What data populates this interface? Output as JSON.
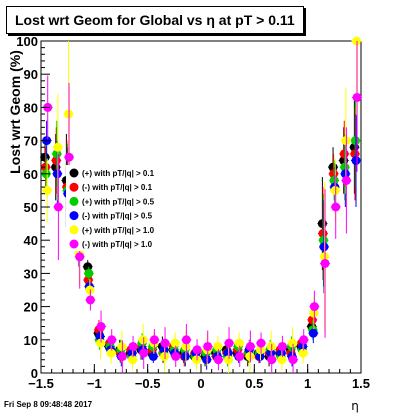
{
  "header": {
    "title": "Lost wrt Geom for Global vs  η at pT > 0.11"
  },
  "footer": {
    "timestamp": "Fri Sep  8 09:48:48 2017"
  },
  "chart_data": {
    "type": "scatter",
    "title": "Lost wrt Geom for Global vs  η at pT > 0.11",
    "xlabel": "η",
    "ylabel": "Lost wrt Geom (%)",
    "xlim": [
      -1.5,
      1.5
    ],
    "ylim": [
      0,
      100
    ],
    "x_ticks": [
      "−1.5",
      "−1",
      "−0.5",
      "0",
      "0.5",
      "1",
      "1.5"
    ],
    "y_ticks": [
      "0",
      "10",
      "20",
      "30",
      "40",
      "50",
      "60",
      "70",
      "80",
      "90",
      "100"
    ],
    "grid": false,
    "legend_position": "left",
    "series": [
      {
        "name": "(+) with pT/|q| > 0.1",
        "color": "#000000",
        "x": [
          -1.45,
          -1.35,
          -1.25,
          -1.15,
          -1.05,
          -0.95,
          -0.85,
          -0.75,
          -0.65,
          -0.55,
          -0.45,
          -0.35,
          -0.25,
          -0.15,
          -0.05,
          0.05,
          0.15,
          0.25,
          0.35,
          0.45,
          0.55,
          0.65,
          0.75,
          0.85,
          0.95,
          1.05,
          1.15,
          1.25,
          1.35,
          1.45
        ],
        "y": [
          65,
          62,
          58,
          45,
          32,
          12,
          8,
          7,
          6,
          7,
          6,
          8,
          7,
          6,
          5,
          5,
          6,
          7,
          6,
          5,
          6,
          5,
          6,
          7,
          8,
          14,
          45,
          62,
          64,
          68
        ]
      },
      {
        "name": "(-) with pT/|q| > 0.1",
        "color": "#ff0000",
        "x": [
          -1.45,
          -1.35,
          -1.25,
          -1.15,
          -1.05,
          -0.95,
          -0.85,
          -0.75,
          -0.65,
          -0.55,
          -0.45,
          -0.35,
          -0.25,
          -0.15,
          -0.05,
          0.05,
          0.15,
          0.25,
          0.35,
          0.45,
          0.55,
          0.65,
          0.75,
          0.85,
          0.95,
          1.05,
          1.15,
          1.25,
          1.35,
          1.45
        ],
        "y": [
          62,
          64,
          56,
          42,
          28,
          13,
          9,
          6,
          7,
          8,
          7,
          6,
          8,
          5,
          6,
          6,
          5,
          6,
          7,
          6,
          5,
          6,
          7,
          6,
          9,
          16,
          42,
          60,
          66,
          66
        ]
      },
      {
        "name": "(+) with pT/|q| > 0.5",
        "color": "#00cc00",
        "x": [
          -1.45,
          -1.35,
          -1.25,
          -1.15,
          -1.05,
          -0.95,
          -0.85,
          -0.75,
          -0.65,
          -0.55,
          -0.45,
          -0.35,
          -0.25,
          -0.15,
          -0.05,
          0.05,
          0.15,
          0.25,
          0.35,
          0.45,
          0.55,
          0.65,
          0.75,
          0.85,
          0.95,
          1.05,
          1.15,
          1.25,
          1.35,
          1.45
        ],
        "y": [
          60,
          66,
          55,
          40,
          30,
          10,
          8,
          7,
          5,
          9,
          8,
          6,
          7,
          7,
          5,
          6,
          7,
          5,
          8,
          6,
          6,
          7,
          5,
          8,
          7,
          13,
          40,
          58,
          62,
          70
        ]
      },
      {
        "name": "(-) with pT/|q| > 0.5",
        "color": "#0000ff",
        "x": [
          -1.45,
          -1.35,
          -1.25,
          -1.15,
          -1.05,
          -0.95,
          -0.85,
          -0.75,
          -0.65,
          -0.55,
          -0.45,
          -0.35,
          -0.25,
          -0.15,
          -0.05,
          0.05,
          0.15,
          0.25,
          0.35,
          0.45,
          0.55,
          0.65,
          0.75,
          0.85,
          0.95,
          1.05,
          1.15,
          1.25,
          1.35,
          1.45
        ],
        "y": [
          70,
          60,
          54,
          38,
          26,
          11,
          7,
          5,
          6,
          7,
          5,
          7,
          6,
          5,
          6,
          4,
          5,
          6,
          5,
          7,
          5,
          6,
          6,
          5,
          8,
          12,
          38,
          56,
          60,
          64
        ]
      },
      {
        "name": "(+) with pT/|q| > 1.0",
        "color": "#ffff00",
        "x": [
          -1.45,
          -1.35,
          -1.25,
          -1.15,
          -1.05,
          -0.95,
          -0.85,
          -0.75,
          -0.65,
          -0.55,
          -0.45,
          -0.35,
          -0.25,
          -0.15,
          -0.05,
          0.05,
          0.15,
          0.25,
          0.35,
          0.45,
          0.55,
          0.65,
          0.75,
          0.85,
          0.95,
          1.05,
          1.15,
          1.25,
          1.35,
          1.45
        ],
        "y": [
          55,
          68,
          78,
          36,
          25,
          9,
          6,
          8,
          4,
          10,
          9,
          5,
          9,
          8,
          4,
          7,
          8,
          4,
          9,
          5,
          7,
          8,
          4,
          9,
          6,
          18,
          35,
          55,
          70,
          100
        ]
      },
      {
        "name": "(-) with pT/|q| > 1.0",
        "color": "#ff00ff",
        "x": [
          -1.45,
          -1.35,
          -1.25,
          -1.15,
          -1.05,
          -0.95,
          -0.85,
          -0.75,
          -0.65,
          -0.55,
          -0.45,
          -0.35,
          -0.25,
          -0.15,
          -0.05,
          0.05,
          0.15,
          0.25,
          0.35,
          0.45,
          0.55,
          0.65,
          0.75,
          0.85,
          0.95,
          1.05,
          1.15,
          1.25,
          1.35,
          1.45
        ],
        "y": [
          80,
          50,
          65,
          35,
          22,
          14,
          10,
          5,
          8,
          6,
          10,
          9,
          5,
          10,
          7,
          8,
          4,
          9,
          5,
          8,
          9,
          4,
          8,
          4,
          10,
          20,
          33,
          50,
          58,
          83
        ]
      }
    ]
  }
}
